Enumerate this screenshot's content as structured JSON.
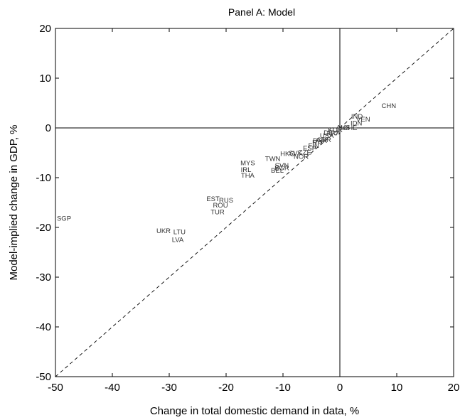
{
  "chart_data": {
    "type": "scatter",
    "title": "Panel A: Model",
    "xlabel": "Change in total domestic demand in data, %",
    "ylabel": "Model-implied change in GDP, %",
    "xlim": [
      -50,
      20
    ],
    "ylim": [
      -50,
      20
    ],
    "xticks": [
      -50,
      -40,
      -30,
      -20,
      -10,
      0,
      10,
      20
    ],
    "yticks": [
      -50,
      -40,
      -30,
      -20,
      -10,
      0,
      10,
      20
    ],
    "reference_lines": [
      "45-degree line (dashed)",
      "x = 0",
      "y = 0"
    ],
    "points": [
      {
        "label": "SGP",
        "x": -48.5,
        "y": -18.2
      },
      {
        "label": "UKR",
        "x": -31.0,
        "y": -20.7
      },
      {
        "label": "LTU",
        "x": -28.2,
        "y": -20.9
      },
      {
        "label": "LVA",
        "x": -28.5,
        "y": -22.5
      },
      {
        "label": "EST",
        "x": -22.3,
        "y": -14.3
      },
      {
        "label": "RUS",
        "x": -20.0,
        "y": -14.6
      },
      {
        "label": "ROU",
        "x": -21.0,
        "y": -15.6
      },
      {
        "label": "TUR",
        "x": -21.5,
        "y": -16.9
      },
      {
        "label": "MYS",
        "x": -16.2,
        "y": -7.1
      },
      {
        "label": "IRL",
        "x": -16.5,
        "y": -8.4
      },
      {
        "label": "THA",
        "x": -16.2,
        "y": -9.6
      },
      {
        "label": "TWN",
        "x": -11.8,
        "y": -6.2
      },
      {
        "label": "BGR",
        "x": -10.2,
        "y": -8.1
      },
      {
        "label": "SVN",
        "x": -10.2,
        "y": -7.6
      },
      {
        "label": "BEL",
        "x": -11.0,
        "y": -8.6
      },
      {
        "label": "HKG",
        "x": -9.2,
        "y": -5.2
      },
      {
        "label": "SVK",
        "x": -7.8,
        "y": -5.1
      },
      {
        "label": "NOR",
        "x": -6.8,
        "y": -5.8
      },
      {
        "label": "CZE",
        "x": -6.2,
        "y": -4.9
      },
      {
        "label": "ESP",
        "x": -5.3,
        "y": -4.1
      },
      {
        "label": "FIN",
        "x": -4.6,
        "y": -3.6
      },
      {
        "label": "ITA",
        "x": -4.0,
        "y": -2.9
      },
      {
        "label": "DNK",
        "x": -3.5,
        "y": -2.6
      },
      {
        "label": "GBR",
        "x": -2.8,
        "y": -2.4
      },
      {
        "label": "USA",
        "x": -2.3,
        "y": -1.6
      },
      {
        "label": "DEU",
        "x": -1.6,
        "y": -1.0
      },
      {
        "label": "FRA",
        "x": -1.1,
        "y": -1.1
      },
      {
        "label": "KOR",
        "x": -0.8,
        "y": -0.4
      },
      {
        "label": "AUS",
        "x": 0.6,
        "y": 0.1
      },
      {
        "label": "CHE",
        "x": 1.8,
        "y": 0.0
      },
      {
        "label": "IDN",
        "x": 2.9,
        "y": 0.9
      },
      {
        "label": "VEN",
        "x": 4.1,
        "y": 1.7
      },
      {
        "label": "IND",
        "x": 3.0,
        "y": 2.3
      },
      {
        "label": "CHN",
        "x": 8.6,
        "y": 4.4
      }
    ]
  }
}
